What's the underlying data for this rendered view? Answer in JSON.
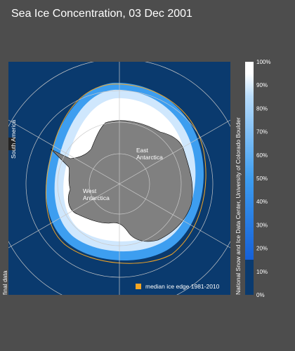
{
  "title": "Sea Ice Concentration, 03 Dec 2001",
  "map_labels": {
    "south_america": "South America",
    "east_antarctica": [
      "East",
      "Antarctica"
    ],
    "west_antarctica": [
      "West",
      "Antarctica"
    ]
  },
  "legend": {
    "label": "median ice edge 1981-2010"
  },
  "status": "final data",
  "credit": "National Snow and Ice Data Center, University of Colorado Boulder",
  "colorbar": {
    "ticks": [
      "100%",
      "90%",
      "80%",
      "70%",
      "60%",
      "50%",
      "40%",
      "30%",
      "20%",
      "10%",
      "0%"
    ]
  }
}
